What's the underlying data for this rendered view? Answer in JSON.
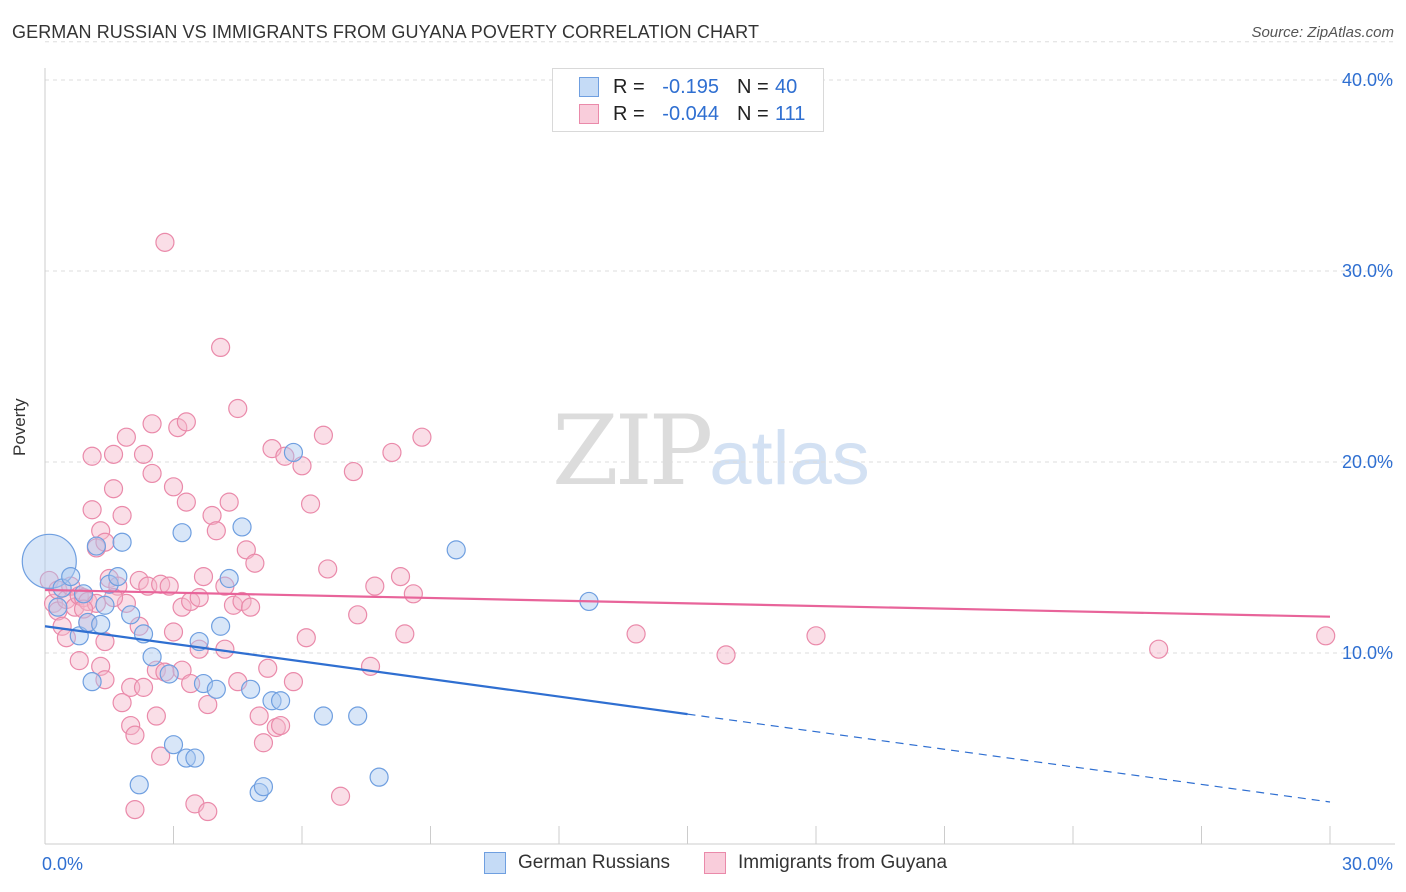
{
  "title": "GERMAN RUSSIAN VS IMMIGRANTS FROM GUYANA POVERTY CORRELATION CHART",
  "source": "Source: ZipAtlas.com",
  "watermark": {
    "part1": "ZIP",
    "part2": "atlas"
  },
  "colors": {
    "blue_fill": "#a9c8f0",
    "blue_stroke": "#6f9fe0",
    "blue_line": "#2f6fd1",
    "pink_fill": "#f5b5c9",
    "pink_stroke": "#ea8aaa",
    "pink_line": "#e8649a",
    "grid": "#dddddd",
    "axis_text": "#2f6fd1"
  },
  "legend": {
    "rows": [
      {
        "r_label": "R =",
        "r_value": "-0.195",
        "n_label": "N =",
        "n_value": "40"
      },
      {
        "r_label": "R =",
        "r_value": "-0.044",
        "n_label": "N =",
        "n_value": "111"
      }
    ]
  },
  "bottom_legend": [
    "German Russians",
    "Immigrants from Guyana"
  ],
  "chart_data": {
    "type": "scatter",
    "title": "GERMAN RUSSIAN VS IMMIGRANTS FROM GUYANA POVERTY CORRELATION CHART",
    "xlabel": "",
    "ylabel": "Poverty",
    "xlim": [
      0,
      30
    ],
    "ylim": [
      0,
      42
    ],
    "x_tick_labels": [
      "0.0%",
      "30.0%"
    ],
    "y_ticks": [
      10,
      20,
      30,
      40
    ],
    "y_tick_labels": [
      "10.0%",
      "20.0%",
      "30.0%",
      "40.0%"
    ],
    "grid": true,
    "series": [
      {
        "name": "German Russians",
        "r": -0.195,
        "n": 40,
        "trend": {
          "x0": 0,
          "y0": 11.4,
          "x1": 15.0,
          "y1": 6.8,
          "dash_to_x": 30,
          "dash_to_y": 2.2
        },
        "points": [
          {
            "x": 0.1,
            "y": 14.8,
            "s": 3
          },
          {
            "x": 0.3,
            "y": 12.4
          },
          {
            "x": 0.4,
            "y": 13.4
          },
          {
            "x": 0.6,
            "y": 14.0
          },
          {
            "x": 0.8,
            "y": 10.9
          },
          {
            "x": 0.9,
            "y": 13.1
          },
          {
            "x": 1.0,
            "y": 11.6
          },
          {
            "x": 1.1,
            "y": 8.5
          },
          {
            "x": 1.2,
            "y": 15.6
          },
          {
            "x": 1.3,
            "y": 11.5
          },
          {
            "x": 1.4,
            "y": 12.5
          },
          {
            "x": 1.5,
            "y": 13.6
          },
          {
            "x": 1.7,
            "y": 14.0
          },
          {
            "x": 1.8,
            "y": 15.8
          },
          {
            "x": 2.0,
            "y": 12.0
          },
          {
            "x": 2.2,
            "y": 3.1
          },
          {
            "x": 2.3,
            "y": 11.0
          },
          {
            "x": 2.5,
            "y": 9.8
          },
          {
            "x": 2.9,
            "y": 8.9
          },
          {
            "x": 3.0,
            "y": 5.2
          },
          {
            "x": 3.2,
            "y": 16.3
          },
          {
            "x": 3.3,
            "y": 4.5
          },
          {
            "x": 3.5,
            "y": 4.5
          },
          {
            "x": 3.6,
            "y": 10.6
          },
          {
            "x": 3.7,
            "y": 8.4
          },
          {
            "x": 4.0,
            "y": 8.1
          },
          {
            "x": 4.1,
            "y": 11.4
          },
          {
            "x": 4.3,
            "y": 13.9
          },
          {
            "x": 4.6,
            "y": 16.6
          },
          {
            "x": 4.8,
            "y": 8.1
          },
          {
            "x": 5.0,
            "y": 2.7
          },
          {
            "x": 5.1,
            "y": 3.0
          },
          {
            "x": 5.3,
            "y": 7.5
          },
          {
            "x": 5.5,
            "y": 7.5
          },
          {
            "x": 5.8,
            "y": 20.5
          },
          {
            "x": 6.5,
            "y": 6.7
          },
          {
            "x": 7.3,
            "y": 6.7
          },
          {
            "x": 7.8,
            "y": 3.5
          },
          {
            "x": 9.6,
            "y": 15.4
          },
          {
            "x": 12.7,
            "y": 12.7
          }
        ]
      },
      {
        "name": "Immigrants from Guyana",
        "r": -0.044,
        "n": 111,
        "trend": {
          "x0": 0,
          "y0": 13.3,
          "x1": 30,
          "y1": 11.9
        },
        "points": [
          {
            "x": 0.1,
            "y": 13.8
          },
          {
            "x": 0.2,
            "y": 12.6
          },
          {
            "x": 0.3,
            "y": 12.2
          },
          {
            "x": 0.3,
            "y": 13.3
          },
          {
            "x": 0.4,
            "y": 11.4
          },
          {
            "x": 0.5,
            "y": 12.8
          },
          {
            "x": 0.5,
            "y": 10.8
          },
          {
            "x": 0.6,
            "y": 13.5
          },
          {
            "x": 0.7,
            "y": 12.4
          },
          {
            "x": 0.8,
            "y": 13.0
          },
          {
            "x": 0.8,
            "y": 9.6
          },
          {
            "x": 0.9,
            "y": 12.9
          },
          {
            "x": 1.0,
            "y": 12.7
          },
          {
            "x": 1.0,
            "y": 11.6
          },
          {
            "x": 1.1,
            "y": 20.3
          },
          {
            "x": 1.1,
            "y": 17.5
          },
          {
            "x": 1.2,
            "y": 12.6
          },
          {
            "x": 1.2,
            "y": 15.5
          },
          {
            "x": 1.3,
            "y": 16.4
          },
          {
            "x": 1.3,
            "y": 9.3
          },
          {
            "x": 1.4,
            "y": 8.6
          },
          {
            "x": 1.4,
            "y": 10.6
          },
          {
            "x": 1.4,
            "y": 15.8
          },
          {
            "x": 1.5,
            "y": 13.9
          },
          {
            "x": 1.6,
            "y": 20.4
          },
          {
            "x": 1.6,
            "y": 18.6
          },
          {
            "x": 1.7,
            "y": 13.5
          },
          {
            "x": 1.8,
            "y": 7.4
          },
          {
            "x": 1.8,
            "y": 17.2
          },
          {
            "x": 1.9,
            "y": 21.3
          },
          {
            "x": 1.9,
            "y": 12.6
          },
          {
            "x": 2.0,
            "y": 8.2
          },
          {
            "x": 2.0,
            "y": 6.2
          },
          {
            "x": 2.1,
            "y": 5.7
          },
          {
            "x": 2.1,
            "y": 1.8
          },
          {
            "x": 2.2,
            "y": 13.8
          },
          {
            "x": 2.2,
            "y": 11.4
          },
          {
            "x": 2.3,
            "y": 20.4
          },
          {
            "x": 2.3,
            "y": 8.2
          },
          {
            "x": 2.4,
            "y": 13.5
          },
          {
            "x": 2.5,
            "y": 22.0
          },
          {
            "x": 2.5,
            "y": 19.4
          },
          {
            "x": 2.6,
            "y": 9.1
          },
          {
            "x": 2.6,
            "y": 6.7
          },
          {
            "x": 2.7,
            "y": 13.6
          },
          {
            "x": 2.7,
            "y": 4.6
          },
          {
            "x": 2.8,
            "y": 9.0
          },
          {
            "x": 2.8,
            "y": 31.5
          },
          {
            "x": 2.9,
            "y": 13.5
          },
          {
            "x": 3.0,
            "y": 18.7
          },
          {
            "x": 3.0,
            "y": 11.1
          },
          {
            "x": 3.1,
            "y": 21.8
          },
          {
            "x": 3.2,
            "y": 12.4
          },
          {
            "x": 3.2,
            "y": 9.1
          },
          {
            "x": 3.3,
            "y": 22.1
          },
          {
            "x": 3.3,
            "y": 17.9
          },
          {
            "x": 3.4,
            "y": 12.7
          },
          {
            "x": 3.4,
            "y": 8.4
          },
          {
            "x": 3.5,
            "y": 2.1
          },
          {
            "x": 3.6,
            "y": 12.9
          },
          {
            "x": 3.6,
            "y": 10.2
          },
          {
            "x": 3.7,
            "y": 14.0
          },
          {
            "x": 3.8,
            "y": 7.3
          },
          {
            "x": 3.8,
            "y": 1.7
          },
          {
            "x": 3.9,
            "y": 17.2
          },
          {
            "x": 4.0,
            "y": 16.4
          },
          {
            "x": 4.1,
            "y": 26.0
          },
          {
            "x": 4.2,
            "y": 13.5
          },
          {
            "x": 4.2,
            "y": 10.2
          },
          {
            "x": 4.3,
            "y": 17.9
          },
          {
            "x": 4.4,
            "y": 12.5
          },
          {
            "x": 4.5,
            "y": 22.8
          },
          {
            "x": 4.5,
            "y": 8.5
          },
          {
            "x": 4.6,
            "y": 12.7
          },
          {
            "x": 4.7,
            "y": 15.4
          },
          {
            "x": 4.8,
            "y": 12.4
          },
          {
            "x": 4.9,
            "y": 14.7
          },
          {
            "x": 5.0,
            "y": 6.7
          },
          {
            "x": 5.1,
            "y": 5.3
          },
          {
            "x": 5.2,
            "y": 9.2
          },
          {
            "x": 5.3,
            "y": 20.7
          },
          {
            "x": 5.4,
            "y": 6.1
          },
          {
            "x": 5.5,
            "y": 6.2
          },
          {
            "x": 5.6,
            "y": 20.3
          },
          {
            "x": 5.8,
            "y": 8.5
          },
          {
            "x": 6.0,
            "y": 19.8
          },
          {
            "x": 6.1,
            "y": 10.8
          },
          {
            "x": 6.2,
            "y": 17.8
          },
          {
            "x": 6.5,
            "y": 21.4
          },
          {
            "x": 6.6,
            "y": 14.4
          },
          {
            "x": 6.9,
            "y": 2.5
          },
          {
            "x": 7.2,
            "y": 19.5
          },
          {
            "x": 7.3,
            "y": 12.0
          },
          {
            "x": 7.6,
            "y": 9.3
          },
          {
            "x": 7.7,
            "y": 13.5
          },
          {
            "x": 8.1,
            "y": 20.5
          },
          {
            "x": 8.3,
            "y": 14.0
          },
          {
            "x": 8.4,
            "y": 11.0
          },
          {
            "x": 8.6,
            "y": 13.1
          },
          {
            "x": 8.8,
            "y": 21.3
          },
          {
            "x": 13.8,
            "y": 11.0
          },
          {
            "x": 15.9,
            "y": 9.9
          },
          {
            "x": 18.0,
            "y": 10.9
          },
          {
            "x": 26.0,
            "y": 10.2
          },
          {
            "x": 29.9,
            "y": 10.9
          },
          {
            "x": 1.6,
            "y": 12.9
          },
          {
            "x": 0.9,
            "y": 12.3
          }
        ]
      }
    ]
  }
}
